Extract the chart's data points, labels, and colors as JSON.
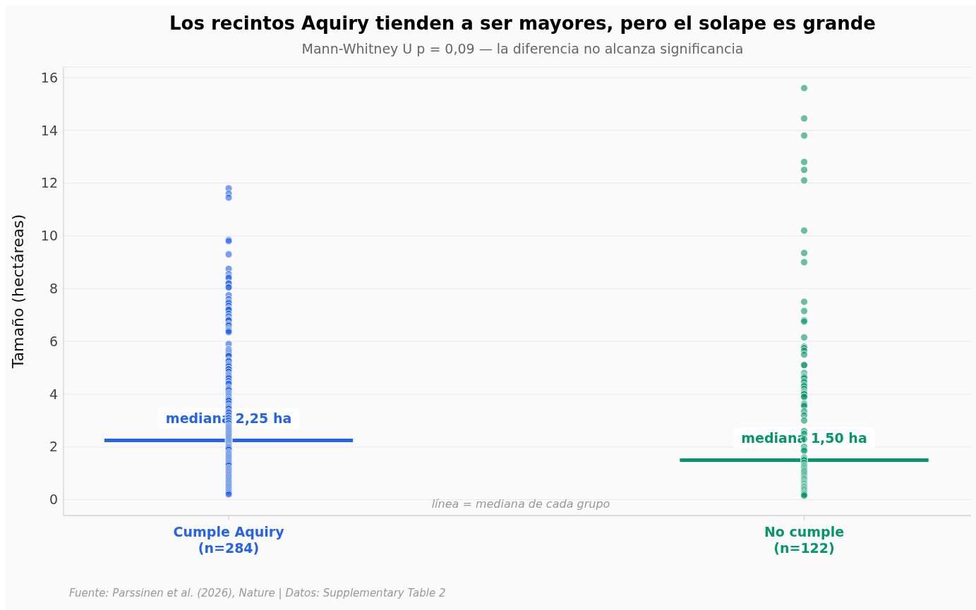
{
  "chart_data": {
    "type": "scatter",
    "title": "Los recintos Aquiry tienden a ser mayores, pero el solape es grande",
    "subtitle": "Mann-Whitney U p = 0,09 — la diferencia no alcanza significancia",
    "ylabel": "Tamaño (hectáreas)",
    "categories": [
      "Cumple Aquiry\n(n=284)",
      "No cumple\n(n=122)"
    ],
    "series": [
      {
        "color": "#2563eb",
        "x": [
          "Cumple Aquiry\n(n=284)",
          "Cumple Aquiry\n(n=284)",
          "Cumple Aquiry\n(n=284)",
          "Cumple Aquiry\n(n=284)",
          "Cumple Aquiry\n(n=284)",
          "Cumple Aquiry\n(n=284)",
          "Cumple Aquiry\n(n=284)",
          "Cumple Aquiry\n(n=284)",
          "Cumple Aquiry\n(n=284)",
          "Cumple Aquiry\n(n=284)",
          "Cumple Aquiry\n(n=284)",
          "Cumple Aquiry\n(n=284)",
          "Cumple Aquiry\n(n=284)",
          "Cumple Aquiry\n(n=284)",
          "Cumple Aquiry\n(n=284)",
          "Cumple Aquiry\n(n=284)",
          "Cumple Aquiry\n(n=284)",
          "Cumple Aquiry\n(n=284)",
          "Cumple Aquiry\n(n=284)",
          "Cumple Aquiry\n(n=284)",
          "Cumple Aquiry\n(n=284)",
          "Cumple Aquiry\n(n=284)",
          "Cumple Aquiry\n(n=284)",
          "Cumple Aquiry\n(n=284)",
          "Cumple Aquiry\n(n=284)",
          "Cumple Aquiry\n(n=284)",
          "Cumple Aquiry\n(n=284)",
          "Cumple Aquiry\n(n=284)",
          "Cumple Aquiry\n(n=284)",
          "Cumple Aquiry\n(n=284)",
          "Cumple Aquiry\n(n=284)",
          "Cumple Aquiry\n(n=284)",
          "Cumple Aquiry\n(n=284)",
          "Cumple Aquiry\n(n=284)",
          "Cumple Aquiry\n(n=284)",
          "Cumple Aquiry\n(n=284)",
          "Cumple Aquiry\n(n=284)",
          "Cumple Aquiry\n(n=284)",
          "Cumple Aquiry\n(n=284)",
          "Cumple Aquiry\n(n=284)",
          "Cumple Aquiry\n(n=284)",
          "Cumple Aquiry\n(n=284)",
          "Cumple Aquiry\n(n=284)",
          "Cumple Aquiry\n(n=284)",
          "Cumple Aquiry\n(n=284)",
          "Cumple Aquiry\n(n=284)",
          "Cumple Aquiry\n(n=284)",
          "Cumple Aquiry\n(n=284)",
          "Cumple Aquiry\n(n=284)",
          "Cumple Aquiry\n(n=284)",
          "Cumple Aquiry\n(n=284)",
          "Cumple Aquiry\n(n=284)",
          "Cumple Aquiry\n(n=284)",
          "Cumple Aquiry\n(n=284)",
          "Cumple Aquiry\n(n=284)",
          "Cumple Aquiry\n(n=284)",
          "Cumple Aquiry\n(n=284)",
          "Cumple Aquiry\n(n=284)",
          "Cumple Aquiry\n(n=284)",
          "Cumple Aquiry\n(n=284)",
          "Cumple Aquiry\n(n=284)",
          "Cumple Aquiry\n(n=284)",
          "Cumple Aquiry\n(n=284)",
          "Cumple Aquiry\n(n=284)",
          "Cumple Aquiry\n(n=284)",
          "Cumple Aquiry\n(n=284)",
          "Cumple Aquiry\n(n=284)",
          "Cumple Aquiry\n(n=284)",
          "Cumple Aquiry\n(n=284)",
          "Cumple Aquiry\n(n=284)",
          "Cumple Aquiry\n(n=284)",
          "Cumple Aquiry\n(n=284)",
          "Cumple Aquiry\n(n=284)",
          "Cumple Aquiry\n(n=284)",
          "Cumple Aquiry\n(n=284)",
          "Cumple Aquiry\n(n=284)",
          "Cumple Aquiry\n(n=284)",
          "Cumple Aquiry\n(n=284)",
          "Cumple Aquiry\n(n=284)",
          "Cumple Aquiry\n(n=284)",
          "Cumple Aquiry\n(n=284)",
          "Cumple Aquiry\n(n=284)",
          "Cumple Aquiry\n(n=284)",
          "Cumple Aquiry\n(n=284)",
          "Cumple Aquiry\n(n=284)",
          "Cumple Aquiry\n(n=284)",
          "Cumple Aquiry\n(n=284)",
          "Cumple Aquiry\n(n=284)",
          "Cumple Aquiry\n(n=284)",
          "Cumple Aquiry\n(n=284)",
          "Cumple Aquiry\n(n=284)",
          "Cumple Aquiry\n(n=284)",
          "Cumple Aquiry\n(n=284)",
          "Cumple Aquiry\n(n=284)",
          "Cumple Aquiry\n(n=284)",
          "Cumple Aquiry\n(n=284)",
          "Cumple Aquiry\n(n=284)",
          "Cumple Aquiry\n(n=284)",
          "Cumple Aquiry\n(n=284)",
          "Cumple Aquiry\n(n=284)",
          "Cumple Aquiry\n(n=284)",
          "Cumple Aquiry\n(n=284)",
          "Cumple Aquiry\n(n=284)",
          "Cumple Aquiry\n(n=284)",
          "Cumple Aquiry\n(n=284)",
          "Cumple Aquiry\n(n=284)",
          "Cumple Aquiry\n(n=284)",
          "Cumple Aquiry\n(n=284)",
          "Cumple Aquiry\n(n=284)",
          "Cumple Aquiry\n(n=284)",
          "Cumple Aquiry\n(n=284)",
          "Cumple Aquiry\n(n=284)",
          "Cumple Aquiry\n(n=284)",
          "Cumple Aquiry\n(n=284)",
          "Cumple Aquiry\n(n=284)",
          "Cumple Aquiry\n(n=284)",
          "Cumple Aquiry\n(n=284)",
          "Cumple Aquiry\n(n=284)",
          "Cumple Aquiry\n(n=284)",
          "Cumple Aquiry\n(n=284)",
          "Cumple Aquiry\n(n=284)",
          "Cumple Aquiry\n(n=284)",
          "Cumple Aquiry\n(n=284)",
          "Cumple Aquiry\n(n=284)",
          "Cumple Aquiry\n(n=284)",
          "Cumple Aquiry\n(n=284)",
          "Cumple Aquiry\n(n=284)",
          "Cumple Aquiry\n(n=284)",
          "Cumple Aquiry\n(n=284)",
          "Cumple Aquiry\n(n=284)",
          "Cumple Aquiry\n(n=284)",
          "Cumple Aquiry\n(n=284)",
          "Cumple Aquiry\n(n=284)",
          "Cumple Aquiry\n(n=284)"
        ],
        "values": [
          11.8,
          11.6,
          11.45,
          9.85,
          9.8,
          9.3,
          8.75,
          8.55,
          8.45,
          8.4,
          8.2,
          8.2,
          8.05,
          8.05,
          7.75,
          7.6,
          7.5,
          7.45,
          7.35,
          7.25,
          7.2,
          7.2,
          7.05,
          6.95,
          6.85,
          6.8,
          6.8,
          6.65,
          6.65,
          6.6,
          6.5,
          6.45,
          6.4,
          6.4,
          6.35,
          5.9,
          5.7,
          5.7,
          5.65,
          5.6,
          5.55,
          5.5,
          5.45,
          5.45,
          5.3,
          5.25,
          5.25,
          5.15,
          5.1,
          5.05,
          4.95,
          4.95,
          4.95,
          4.85,
          4.75,
          4.7,
          4.65,
          4.6,
          4.5,
          4.4,
          4.4,
          4.25,
          4.2,
          4.15,
          4.05,
          4.0,
          3.95,
          3.9,
          3.85,
          3.8,
          3.8,
          3.75,
          3.65,
          3.55,
          3.5,
          3.45,
          3.35,
          3.3,
          3.2,
          3.1,
          3.0,
          2.9,
          2.8,
          2.75,
          2.7,
          2.65,
          2.6,
          2.55,
          2.5,
          2.45,
          2.4,
          2.35,
          2.3,
          2.25,
          2.2,
          2.15,
          2.1,
          2.05,
          2.0,
          2.0,
          1.95,
          1.9,
          1.8,
          1.75,
          1.7,
          1.65,
          1.6,
          1.55,
          1.5,
          1.45,
          1.4,
          1.35,
          1.3,
          1.2,
          1.15,
          1.1,
          1.05,
          1.0,
          0.95,
          0.9,
          0.85,
          0.8,
          0.75,
          0.7,
          0.65,
          0.6,
          0.55,
          0.5,
          0.45,
          0.4,
          0.35,
          0.3,
          0.25,
          0.2
        ]
      },
      {
        "color": "#059669",
        "x": [
          "No cumple\n(n=122)",
          "No cumple\n(n=122)",
          "No cumple\n(n=122)",
          "No cumple\n(n=122)",
          "No cumple\n(n=122)",
          "No cumple\n(n=122)",
          "No cumple\n(n=122)",
          "No cumple\n(n=122)",
          "No cumple\n(n=122)",
          "No cumple\n(n=122)",
          "No cumple\n(n=122)",
          "No cumple\n(n=122)",
          "No cumple\n(n=122)",
          "No cumple\n(n=122)",
          "No cumple\n(n=122)",
          "No cumple\n(n=122)",
          "No cumple\n(n=122)",
          "No cumple\n(n=122)",
          "No cumple\n(n=122)",
          "No cumple\n(n=122)",
          "No cumple\n(n=122)",
          "No cumple\n(n=122)",
          "No cumple\n(n=122)",
          "No cumple\n(n=122)",
          "No cumple\n(n=122)",
          "No cumple\n(n=122)",
          "No cumple\n(n=122)",
          "No cumple\n(n=122)",
          "No cumple\n(n=122)",
          "No cumple\n(n=122)",
          "No cumple\n(n=122)",
          "No cumple\n(n=122)",
          "No cumple\n(n=122)",
          "No cumple\n(n=122)",
          "No cumple\n(n=122)",
          "No cumple\n(n=122)",
          "No cumple\n(n=122)",
          "No cumple\n(n=122)",
          "No cumple\n(n=122)",
          "No cumple\n(n=122)",
          "No cumple\n(n=122)",
          "No cumple\n(n=122)",
          "No cumple\n(n=122)",
          "No cumple\n(n=122)",
          "No cumple\n(n=122)",
          "No cumple\n(n=122)",
          "No cumple\n(n=122)",
          "No cumple\n(n=122)",
          "No cumple\n(n=122)",
          "No cumple\n(n=122)",
          "No cumple\n(n=122)",
          "No cumple\n(n=122)",
          "No cumple\n(n=122)",
          "No cumple\n(n=122)",
          "No cumple\n(n=122)",
          "No cumple\n(n=122)",
          "No cumple\n(n=122)",
          "No cumple\n(n=122)",
          "No cumple\n(n=122)",
          "No cumple\n(n=122)",
          "No cumple\n(n=122)",
          "No cumple\n(n=122)",
          "No cumple\n(n=122)",
          "No cumple\n(n=122)",
          "No cumple\n(n=122)",
          "No cumple\n(n=122)",
          "No cumple\n(n=122)",
          "No cumple\n(n=122)",
          "No cumple\n(n=122)",
          "No cumple\n(n=122)",
          "No cumple\n(n=122)",
          "No cumple\n(n=122)",
          "No cumple\n(n=122)",
          "No cumple\n(n=122)",
          "No cumple\n(n=122)",
          "No cumple\n(n=122)",
          "No cumple\n(n=122)",
          "No cumple\n(n=122)",
          "No cumple\n(n=122)",
          "No cumple\n(n=122)",
          "No cumple\n(n=122)",
          "No cumple\n(n=122)",
          "No cumple\n(n=122)",
          "No cumple\n(n=122)",
          "No cumple\n(n=122)"
        ],
        "values": [
          15.6,
          14.45,
          13.8,
          12.8,
          12.5,
          12.1,
          10.2,
          9.35,
          9.0,
          7.5,
          7.15,
          6.8,
          6.75,
          6.15,
          5.8,
          5.75,
          5.65,
          5.5,
          5.1,
          5.1,
          4.8,
          4.7,
          4.65,
          4.65,
          4.6,
          4.5,
          4.45,
          4.35,
          4.3,
          4.2,
          4.1,
          4.05,
          4.0,
          4.0,
          3.9,
          3.9,
          3.65,
          3.6,
          3.55,
          3.35,
          3.2,
          3.0,
          2.6,
          2.5,
          2.3,
          2.0,
          1.9,
          1.85,
          1.6,
          1.55,
          1.5,
          1.4,
          1.3,
          1.25,
          1.2,
          1.15,
          1.1,
          1.1,
          1.05,
          1.0,
          0.95,
          0.9,
          0.85,
          0.8,
          0.8,
          0.75,
          0.7,
          0.65,
          0.65,
          0.6,
          0.6,
          0.55,
          0.5,
          0.5,
          0.5,
          0.45,
          0.4,
          0.4,
          0.35,
          0.3,
          0.25,
          0.25,
          0.2,
          0.2,
          0.15
        ]
      }
    ],
    "ref_lines": [
      {
        "axis": "y",
        "value": 2.25,
        "label": "mediana 2,25 ha",
        "color": "#2563eb"
      },
      {
        "axis": "y",
        "value": 1.5,
        "label": "mediana 1,50 ha",
        "color": "#059669"
      }
    ],
    "annotations": [
      "línea = mediana de cada grupo",
      "Fuente: Parssinen et al. (2026), Nature | Datos: Supplementary Table 2"
    ],
    "ylim": [
      -0.6,
      16.4
    ],
    "yticks": [
      0,
      2,
      4,
      6,
      8,
      10,
      12,
      14,
      16
    ],
    "grid": "y",
    "marker": "circle",
    "legend": false
  }
}
